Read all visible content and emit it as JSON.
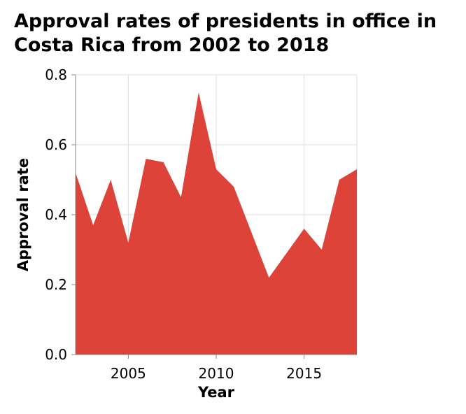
{
  "colors": {
    "area": "#dd4338",
    "grid": "#dddddd",
    "axis": "#888888"
  },
  "chart_data": {
    "type": "area",
    "title_lines": [
      "Approval rates of presidents in office in",
      "Costa Rica from 2002 to 2018"
    ],
    "xlabel": "Year",
    "ylabel": "Approval rate",
    "xlim": [
      2002,
      2018
    ],
    "ylim": [
      0.0,
      0.8
    ],
    "x_ticks": [
      2005,
      2010,
      2015
    ],
    "y_ticks": [
      "0.0",
      "0.2",
      "0.4",
      "0.6",
      "0.8"
    ],
    "grid": true,
    "series": [
      {
        "name": "Approval rate",
        "x": [
          2002,
          2003,
          2004,
          2005,
          2006,
          2007,
          2008,
          2009,
          2010,
          2011,
          2012,
          2013,
          2014,
          2015,
          2016,
          2017,
          2018
        ],
        "values": [
          0.52,
          0.37,
          0.5,
          0.32,
          0.56,
          0.55,
          0.45,
          0.75,
          0.53,
          0.48,
          0.35,
          0.22,
          0.29,
          0.36,
          0.3,
          0.5,
          0.53
        ]
      }
    ]
  }
}
